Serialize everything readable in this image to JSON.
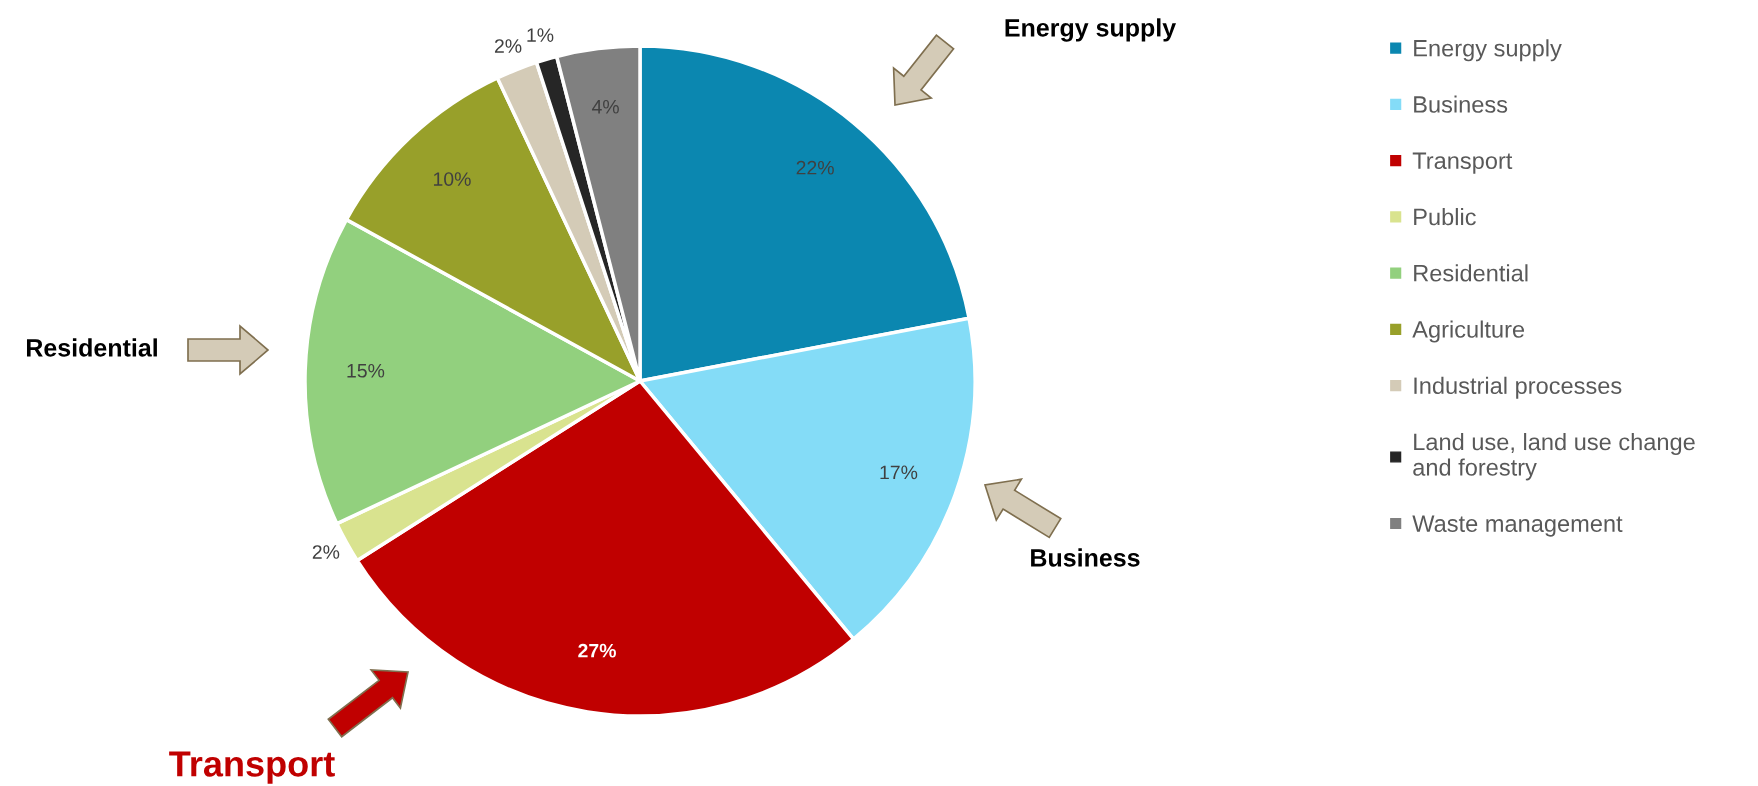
{
  "chart_data": {
    "type": "pie",
    "categories": [
      "Energy supply",
      "Business",
      "Transport",
      "Public",
      "Residential",
      "Agriculture",
      "Industrial processes",
      "Land use, land use change and forestry",
      "Waste management"
    ],
    "values": [
      22,
      17,
      27,
      2,
      15,
      10,
      2,
      1,
      4
    ],
    "colors": [
      "#0b87b0",
      "#84dcf7",
      "#c00000",
      "#d9e38f",
      "#92d07e",
      "#98a02a",
      "#d4cbb7",
      "#262626",
      "#808080"
    ],
    "value_labels": [
      "22%",
      "17%",
      "27%",
      "2%",
      "15%",
      "10%",
      "2%",
      "1%",
      "4%"
    ],
    "annotations": [
      "Energy supply",
      "Business",
      "Residential",
      "Transport"
    ],
    "legend": "right"
  }
}
